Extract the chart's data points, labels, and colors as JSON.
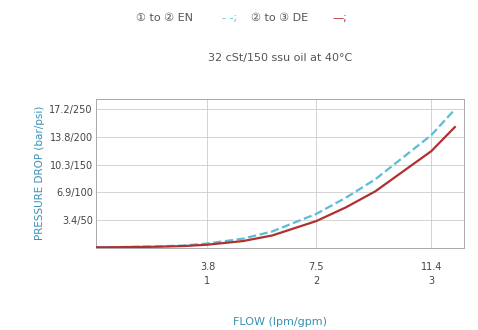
{
  "title_line2": "32 cSt/150 ssu oil at 40°C",
  "xlabel": "FLOW (lpm/gpm)",
  "ylabel": "PRESSURE DROP (bar/psi)",
  "xticks": [
    0,
    3.8,
    7.5,
    11.4
  ],
  "xtick_labels_top": [
    "",
    "3.8",
    "7.5",
    "11.4"
  ],
  "xtick_labels_bot": [
    "",
    "1",
    "2",
    "3"
  ],
  "yticks": [
    0,
    3.4,
    6.9,
    10.3,
    13.8,
    17.2
  ],
  "ytick_labels": [
    "",
    "3.4/50",
    "6.9/100",
    "10.3/150",
    "13.8/200",
    "17.2/250"
  ],
  "xlim": [
    0,
    12.5
  ],
  "ylim": [
    0,
    18.5
  ],
  "en_color": "#5bbcd6",
  "de_color": "#b03030",
  "en_x": [
    0.0,
    0.5,
    1.0,
    2.0,
    3.0,
    3.8,
    5.0,
    6.0,
    7.5,
    8.5,
    9.5,
    11.4,
    12.2
  ],
  "en_y": [
    0.02,
    0.03,
    0.06,
    0.13,
    0.25,
    0.5,
    1.1,
    2.0,
    4.2,
    6.2,
    8.5,
    14.0,
    17.2
  ],
  "de_x": [
    0.0,
    0.5,
    1.0,
    2.0,
    3.0,
    3.8,
    5.0,
    6.0,
    7.5,
    8.5,
    9.5,
    11.4,
    12.2
  ],
  "de_y": [
    0.02,
    0.03,
    0.05,
    0.09,
    0.18,
    0.35,
    0.8,
    1.5,
    3.3,
    5.0,
    7.0,
    12.0,
    15.0
  ],
  "bg_color": "#ffffff",
  "grid_color": "#cccccc",
  "text_color": "#555555",
  "axis_label_color": "#3a8fb5"
}
